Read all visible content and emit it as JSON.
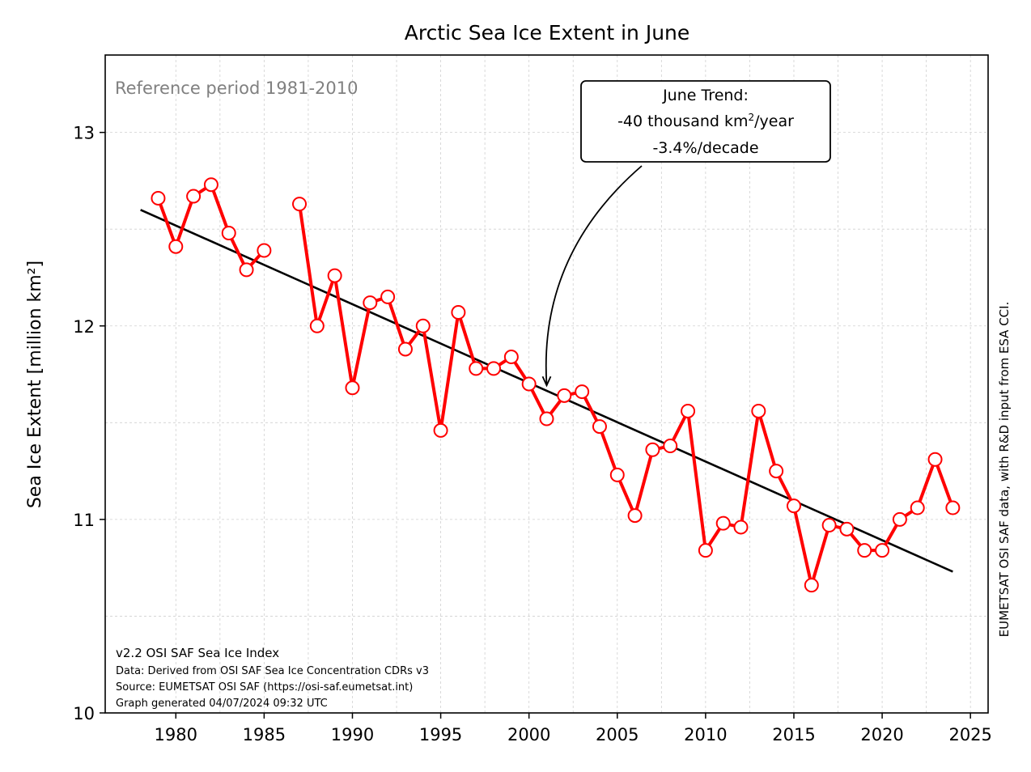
{
  "chart_data": {
    "type": "line",
    "title": "Arctic Sea Ice Extent in June",
    "ylabel": "Sea Ice Extent [million km²]",
    "xlabel": "",
    "xlim": [
      1976,
      2026
    ],
    "ylim": [
      10,
      13.4
    ],
    "xticks": [
      1980,
      1985,
      1990,
      1995,
      2000,
      2005,
      2010,
      2015,
      2020,
      2025
    ],
    "yticks": [
      10,
      11,
      12,
      13
    ],
    "grid": true,
    "series": [
      {
        "color": "#ff0000",
        "x": [
          1979,
          1980,
          1981,
          1982,
          1983,
          1984,
          1985,
          null,
          1987,
          1988,
          1989,
          1990,
          1991,
          1992,
          1993,
          1994,
          1995,
          1996,
          1997,
          1998,
          1999,
          2000,
          2001,
          2002,
          2003,
          2004,
          2005,
          2006,
          2007,
          2008,
          2009,
          2010,
          2011,
          2012,
          2013,
          2014,
          2015,
          2016,
          2017,
          2018,
          2019,
          2020,
          2021,
          2022,
          2023,
          2024
        ],
        "y": [
          12.66,
          12.41,
          12.67,
          12.73,
          12.48,
          12.29,
          12.39,
          null,
          12.63,
          12.0,
          12.26,
          11.68,
          12.12,
          12.15,
          11.88,
          12.0,
          11.46,
          12.07,
          11.78,
          11.78,
          11.84,
          11.7,
          11.52,
          11.64,
          11.66,
          11.48,
          11.23,
          11.02,
          11.36,
          11.38,
          11.56,
          10.84,
          10.98,
          10.96,
          11.56,
          11.25,
          11.07,
          10.66,
          10.97,
          10.95,
          10.84,
          10.84,
          11.0,
          11.06,
          11.31,
          11.06
        ]
      }
    ],
    "trend": {
      "color": "#000000",
      "x": [
        1978,
        2024
      ],
      "y": [
        12.6,
        10.73
      ]
    },
    "annotations": {
      "reference": "Reference period 1981-2010",
      "trend_box": {
        "line1": "June Trend:",
        "line2_prefix": "-40 thousand km",
        "line2_sup": "2",
        "line2_suffix": "/year",
        "line3": "-3.4%/decade",
        "points_to": [
          2001,
          11.68
        ]
      },
      "credits": [
        "v2.2 OSI SAF Sea Ice Index",
        "Data: Derived from OSI SAF Sea Ice Concentration CDRs v3",
        "Source: EUMETSAT OSI SAF (https://osi-saf.eumetsat.int)",
        "Graph generated 04/07/2024 09:32 UTC"
      ],
      "side_note": "EUMETSAT OSI SAF data, with R&D input from ESA CCI."
    }
  }
}
